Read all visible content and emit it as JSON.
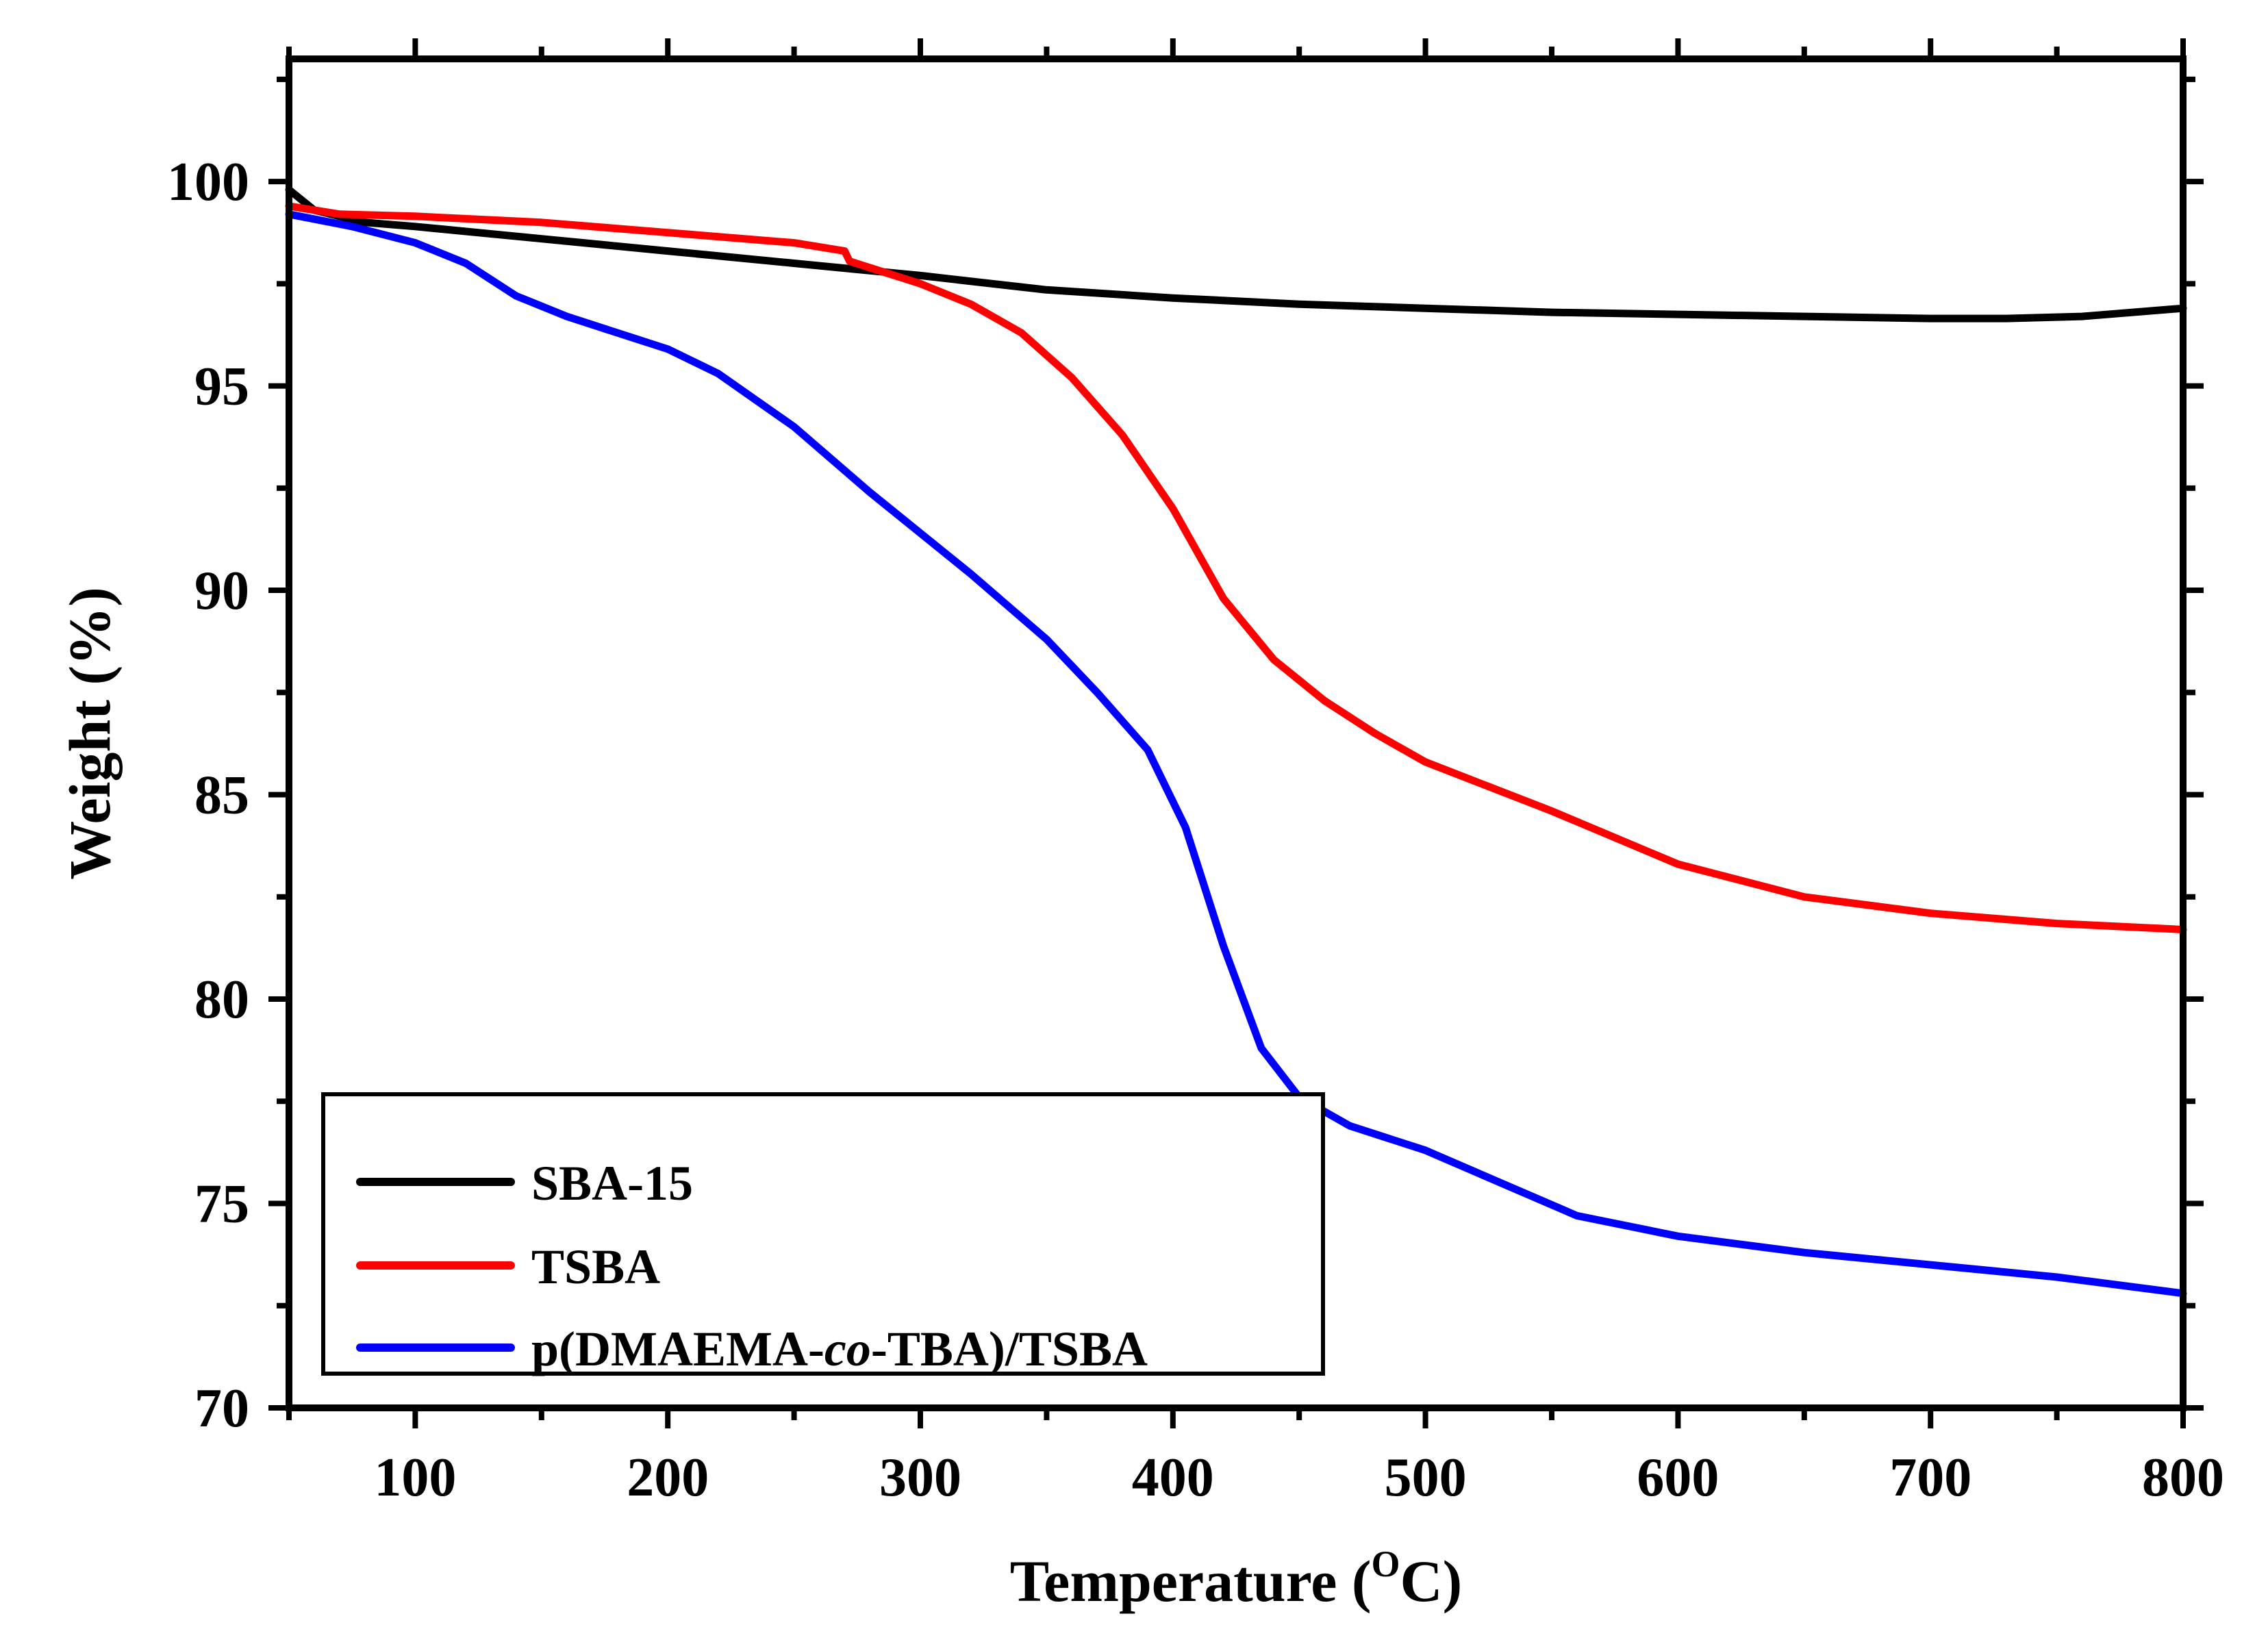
{
  "chart_data": {
    "type": "line",
    "title": "",
    "xlabel": "Temperature (",
    "xlabel_sup": "O",
    "xlabel_suffix": "C)",
    "ylabel": "Weight (%)",
    "xlim": [
      50,
      800
    ],
    "ylim": [
      70,
      103
    ],
    "xticks": [
      100,
      200,
      300,
      400,
      500,
      600,
      700,
      800
    ],
    "yticks": [
      70,
      75,
      80,
      85,
      90,
      95,
      100
    ],
    "xtick_labels": [
      "100",
      "200",
      "300",
      "400",
      "500",
      "600",
      "700",
      "800"
    ],
    "ytick_labels": [
      "70",
      "75",
      "80",
      "85",
      "90",
      "95",
      "100"
    ],
    "legend_position": "bottom-left",
    "series": [
      {
        "name": "SBA-15",
        "label_parts": [
          "SBA-15"
        ],
        "color": "#000000",
        "points": [
          [
            50,
            99.8
          ],
          [
            60,
            99.3
          ],
          [
            80,
            99.0
          ],
          [
            100,
            98.9
          ],
          [
            150,
            98.6
          ],
          [
            200,
            98.3
          ],
          [
            250,
            98.0
          ],
          [
            300,
            97.7
          ],
          [
            350,
            97.35
          ],
          [
            400,
            97.15
          ],
          [
            450,
            97.0
          ],
          [
            500,
            96.9
          ],
          [
            550,
            96.8
          ],
          [
            600,
            96.75
          ],
          [
            650,
            96.7
          ],
          [
            700,
            96.65
          ],
          [
            730,
            96.65
          ],
          [
            760,
            96.7
          ],
          [
            800,
            96.9
          ]
        ]
      },
      {
        "name": "TSBA",
        "label_parts": [
          "TSBA"
        ],
        "color": "#ff0000",
        "points": [
          [
            50,
            99.4
          ],
          [
            70,
            99.2
          ],
          [
            100,
            99.15
          ],
          [
            150,
            99.0
          ],
          [
            200,
            98.75
          ],
          [
            250,
            98.5
          ],
          [
            270,
            98.3
          ],
          [
            272,
            98.05
          ],
          [
            300,
            97.5
          ],
          [
            320,
            97.0
          ],
          [
            340,
            96.3
          ],
          [
            360,
            95.2
          ],
          [
            380,
            93.8
          ],
          [
            400,
            92.0
          ],
          [
            420,
            89.8
          ],
          [
            440,
            88.3
          ],
          [
            460,
            87.3
          ],
          [
            480,
            86.5
          ],
          [
            500,
            85.8
          ],
          [
            550,
            84.6
          ],
          [
            600,
            83.3
          ],
          [
            650,
            82.5
          ],
          [
            700,
            82.1
          ],
          [
            750,
            81.85
          ],
          [
            800,
            81.7
          ]
        ]
      },
      {
        "name": "p(DMAEMA-co-TBA)/TSBA",
        "label_parts": [
          "p(DMAEMA-",
          "co",
          "-TBA)/TSBA"
        ],
        "color": "#0000ff",
        "points": [
          [
            50,
            99.2
          ],
          [
            75,
            98.9
          ],
          [
            100,
            98.5
          ],
          [
            120,
            98.0
          ],
          [
            140,
            97.2
          ],
          [
            160,
            96.7
          ],
          [
            180,
            96.3
          ],
          [
            200,
            95.9
          ],
          [
            220,
            95.3
          ],
          [
            250,
            94.0
          ],
          [
            280,
            92.4
          ],
          [
            300,
            91.4
          ],
          [
            320,
            90.4
          ],
          [
            350,
            88.8
          ],
          [
            370,
            87.5
          ],
          [
            390,
            86.1
          ],
          [
            405,
            84.2
          ],
          [
            420,
            81.3
          ],
          [
            435,
            78.8
          ],
          [
            450,
            77.6
          ],
          [
            470,
            76.9
          ],
          [
            500,
            76.3
          ],
          [
            530,
            75.5
          ],
          [
            560,
            74.7
          ],
          [
            600,
            74.2
          ],
          [
            650,
            73.8
          ],
          [
            700,
            73.5
          ],
          [
            750,
            73.2
          ],
          [
            800,
            72.8
          ]
        ]
      }
    ]
  }
}
